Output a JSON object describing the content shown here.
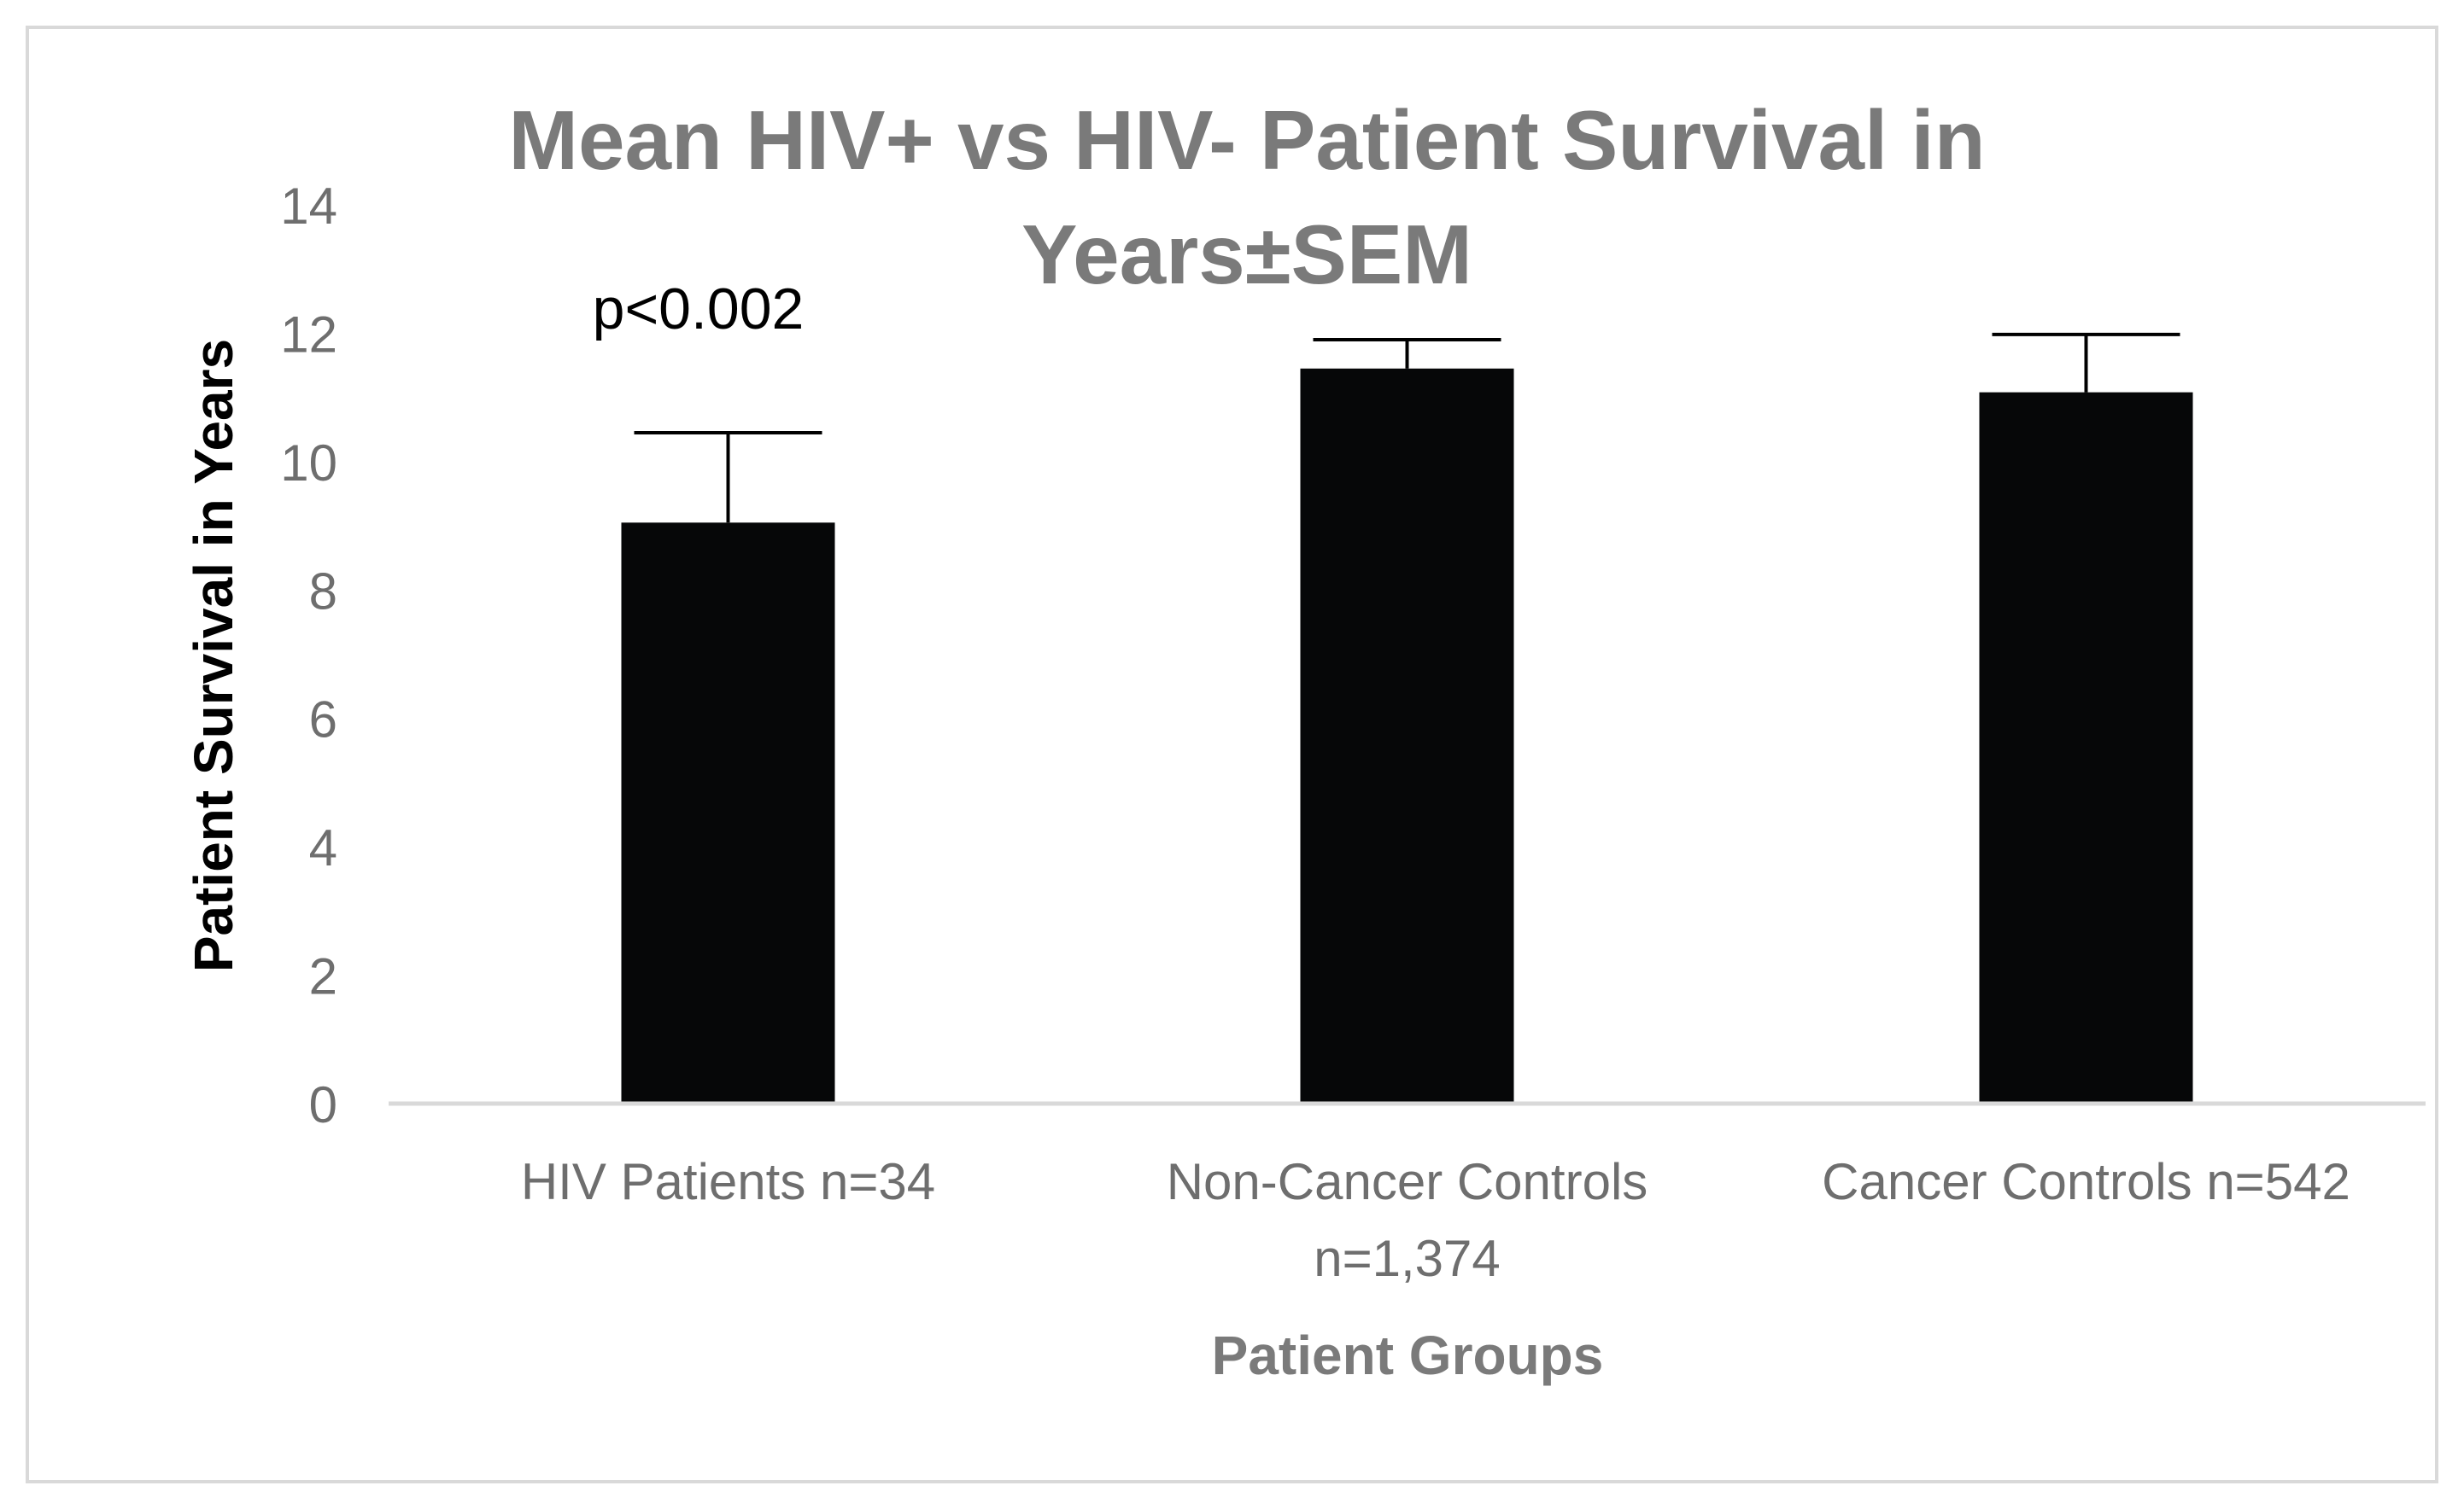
{
  "chart_data": {
    "type": "bar",
    "title_lines": [
      "Mean HIV+ vs HIV- Patient Survival in",
      "Years±SEM"
    ],
    "xlabel": "Patient Groups",
    "ylabel": "Patient Survival in Years",
    "ylim": [
      0,
      14
    ],
    "yticks": [
      0,
      2,
      4,
      6,
      8,
      10,
      12,
      14
    ],
    "ytick_labels": [
      "0",
      "2",
      "4",
      "6",
      "8",
      "10",
      "12",
      "14"
    ],
    "categories": [
      [
        "HIV Patients n=34"
      ],
      [
        "Non-Cancer Controls",
        "n=1,374"
      ],
      [
        "Cancer Controls n=542"
      ]
    ],
    "values": [
      9.05,
      11.45,
      11.08
    ],
    "errors": [
      1.4,
      0.45,
      0.9
    ],
    "annotation": "p<0.002",
    "annotation_category_index": 0,
    "grid": false,
    "legend": "none"
  },
  "colors": {
    "bar_fill": "#060708",
    "error_bar": "#000000",
    "axis_line": "#d9d9d9",
    "tick_text": "#6e6e6e",
    "title_text": "#7a7a7a",
    "ylabel_text": "#000000",
    "annotation_text": "#000000",
    "frame_border": "#d9d9d9"
  }
}
